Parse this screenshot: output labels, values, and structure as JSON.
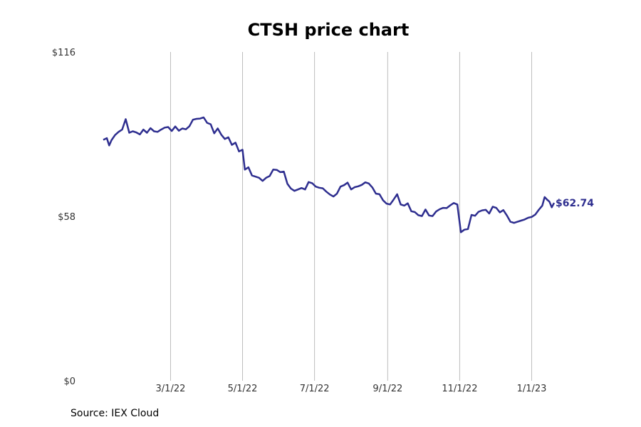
{
  "chart_data": {
    "type": "line",
    "title": "CTSH price chart",
    "source": "Source: IEX Cloud",
    "ylim": [
      0,
      116
    ],
    "y_ticks": [
      {
        "value": 116,
        "label": "$116"
      },
      {
        "value": 58,
        "label": "$58"
      },
      {
        "value": 0,
        "label": "$0"
      }
    ],
    "x_ticks": [
      {
        "date": "2022-03-01",
        "label": "3/1/22"
      },
      {
        "date": "2022-05-01",
        "label": "5/1/22"
      },
      {
        "date": "2022-07-01",
        "label": "7/1/22"
      },
      {
        "date": "2022-09-01",
        "label": "9/1/22"
      },
      {
        "date": "2022-11-01",
        "label": "11/1/22"
      },
      {
        "date": "2023-01-01",
        "label": "1/1/23"
      }
    ],
    "xlim": [
      "2022-01-03",
      "2023-01-20"
    ],
    "grid": "vertical",
    "line_color": "#2e2e8f",
    "last_value_label": "$62.74",
    "series": [
      {
        "values": [
          [
            "2022-01-03",
            85.0
          ],
          [
            "2022-01-06",
            85.6
          ],
          [
            "2022-01-08",
            83.0
          ],
          [
            "2022-01-10",
            84.9
          ],
          [
            "2022-01-13",
            86.7
          ],
          [
            "2022-01-16",
            87.8
          ],
          [
            "2022-01-19",
            88.6
          ],
          [
            "2022-01-22",
            92.3
          ],
          [
            "2022-01-25",
            87.5
          ],
          [
            "2022-01-28",
            88.0
          ],
          [
            "2022-01-31",
            87.6
          ],
          [
            "2022-02-03",
            86.9
          ],
          [
            "2022-02-06",
            88.6
          ],
          [
            "2022-02-09",
            87.5
          ],
          [
            "2022-02-12",
            89.1
          ],
          [
            "2022-02-15",
            88.0
          ],
          [
            "2022-02-18",
            87.8
          ],
          [
            "2022-02-21",
            88.6
          ],
          [
            "2022-02-24",
            89.3
          ],
          [
            "2022-02-27",
            89.5
          ],
          [
            "2022-03-02",
            88.1
          ],
          [
            "2022-03-05",
            89.7
          ],
          [
            "2022-03-08",
            88.2
          ],
          [
            "2022-03-11",
            89.0
          ],
          [
            "2022-03-14",
            88.7
          ],
          [
            "2022-03-17",
            89.8
          ],
          [
            "2022-03-20",
            92.1
          ],
          [
            "2022-03-23",
            92.4
          ],
          [
            "2022-03-26",
            92.5
          ],
          [
            "2022-03-29",
            92.9
          ],
          [
            "2022-04-01",
            91.0
          ],
          [
            "2022-04-04",
            90.5
          ],
          [
            "2022-04-07",
            87.3
          ],
          [
            "2022-04-10",
            89.0
          ],
          [
            "2022-04-13",
            86.8
          ],
          [
            "2022-04-16",
            85.3
          ],
          [
            "2022-04-19",
            85.9
          ],
          [
            "2022-04-22",
            83.2
          ],
          [
            "2022-04-25",
            84.0
          ],
          [
            "2022-04-28",
            80.9
          ],
          [
            "2022-05-01",
            81.5
          ],
          [
            "2022-05-03",
            74.5
          ],
          [
            "2022-05-06",
            75.3
          ],
          [
            "2022-05-09",
            72.4
          ],
          [
            "2022-05-12",
            72.0
          ],
          [
            "2022-05-15",
            71.6
          ],
          [
            "2022-05-18",
            70.5
          ],
          [
            "2022-05-21",
            71.6
          ],
          [
            "2022-05-24",
            72.2
          ],
          [
            "2022-05-27",
            74.5
          ],
          [
            "2022-05-30",
            74.4
          ],
          [
            "2022-06-02",
            73.6
          ],
          [
            "2022-06-05",
            73.8
          ],
          [
            "2022-06-08",
            69.5
          ],
          [
            "2022-06-11",
            67.8
          ],
          [
            "2022-06-14",
            67.0
          ],
          [
            "2022-06-17",
            67.5
          ],
          [
            "2022-06-20",
            68.0
          ],
          [
            "2022-06-23",
            67.5
          ],
          [
            "2022-06-26",
            70.1
          ],
          [
            "2022-06-29",
            69.7
          ],
          [
            "2022-07-02",
            68.5
          ],
          [
            "2022-07-05",
            68.1
          ],
          [
            "2022-07-08",
            67.9
          ],
          [
            "2022-07-11",
            66.7
          ],
          [
            "2022-07-14",
            65.7
          ],
          [
            "2022-07-17",
            65.0
          ],
          [
            "2022-07-20",
            66.0
          ],
          [
            "2022-07-23",
            68.5
          ],
          [
            "2022-07-26",
            69.0
          ],
          [
            "2022-07-29",
            69.9
          ],
          [
            "2022-08-01",
            67.5
          ],
          [
            "2022-08-04",
            68.3
          ],
          [
            "2022-08-07",
            68.6
          ],
          [
            "2022-08-10",
            69.1
          ],
          [
            "2022-08-13",
            70.0
          ],
          [
            "2022-08-16",
            69.6
          ],
          [
            "2022-08-19",
            68.2
          ],
          [
            "2022-08-22",
            66.0
          ],
          [
            "2022-08-25",
            65.8
          ],
          [
            "2022-08-28",
            63.7
          ],
          [
            "2022-08-31",
            62.5
          ],
          [
            "2022-09-03",
            62.2
          ],
          [
            "2022-09-06",
            63.9
          ],
          [
            "2022-09-09",
            65.8
          ],
          [
            "2022-09-12",
            62.2
          ],
          [
            "2022-09-15",
            61.8
          ],
          [
            "2022-09-18",
            62.6
          ],
          [
            "2022-09-21",
            59.8
          ],
          [
            "2022-09-24",
            59.5
          ],
          [
            "2022-09-27",
            58.4
          ],
          [
            "2022-09-30",
            58.1
          ],
          [
            "2022-10-03",
            60.4
          ],
          [
            "2022-10-06",
            58.3
          ],
          [
            "2022-10-09",
            58.1
          ],
          [
            "2022-10-12",
            59.7
          ],
          [
            "2022-10-15",
            60.5
          ],
          [
            "2022-10-18",
            61.0
          ],
          [
            "2022-10-21",
            60.9
          ],
          [
            "2022-10-24",
            61.9
          ],
          [
            "2022-10-27",
            62.7
          ],
          [
            "2022-10-30",
            62.2
          ],
          [
            "2022-11-02",
            52.4
          ],
          [
            "2022-11-05",
            53.3
          ],
          [
            "2022-11-08",
            53.5
          ],
          [
            "2022-11-11",
            58.5
          ],
          [
            "2022-11-14",
            58.2
          ],
          [
            "2022-11-17",
            59.6
          ],
          [
            "2022-11-20",
            60.1
          ],
          [
            "2022-11-23",
            60.3
          ],
          [
            "2022-11-26",
            59.0
          ],
          [
            "2022-11-29",
            61.4
          ],
          [
            "2022-12-02",
            61.0
          ],
          [
            "2022-12-05",
            59.4
          ],
          [
            "2022-12-08",
            60.2
          ],
          [
            "2022-12-11",
            58.3
          ],
          [
            "2022-12-14",
            56.1
          ],
          [
            "2022-12-17",
            55.7
          ],
          [
            "2022-12-20",
            56.1
          ],
          [
            "2022-12-23",
            56.5
          ],
          [
            "2022-12-26",
            56.9
          ],
          [
            "2022-12-29",
            57.5
          ],
          [
            "2023-01-01",
            57.8
          ],
          [
            "2023-01-04",
            58.6
          ],
          [
            "2023-01-07",
            60.3
          ],
          [
            "2023-01-10",
            61.8
          ],
          [
            "2023-01-12",
            64.8
          ],
          [
            "2023-01-14",
            63.9
          ],
          [
            "2023-01-16",
            63.2
          ],
          [
            "2023-01-18",
            61.2
          ],
          [
            "2023-01-20",
            62.74
          ]
        ]
      }
    ]
  }
}
